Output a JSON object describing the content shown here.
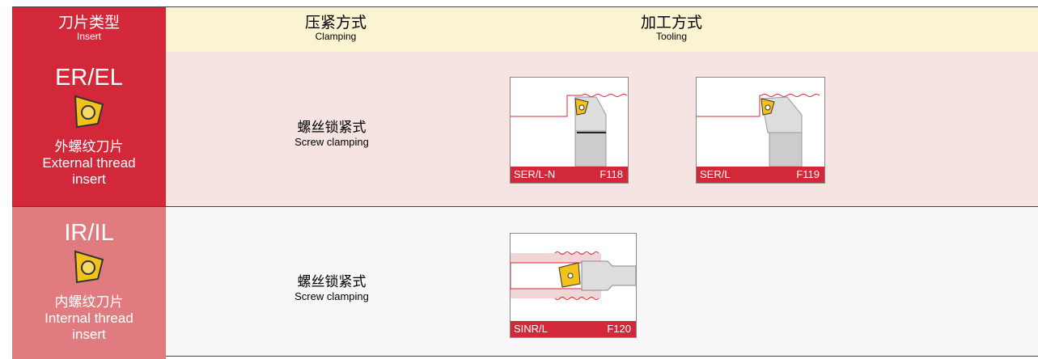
{
  "header": {
    "insert_zh": "刀片类型",
    "insert_en": "Insert",
    "clamping_zh": "压紧方式",
    "clamping_en": "Clamping",
    "tooling_zh": "加工方式",
    "tooling_en": "Tooling"
  },
  "rows": [
    {
      "code": "ER/EL",
      "type_zh": "外螺纹刀片",
      "type_en": "External thread insert",
      "clamping_zh": "螺丝锁紧式",
      "clamping_en": "Screw clamping",
      "tools": [
        {
          "model": "SER/L-N",
          "page": "F118"
        },
        {
          "model": "SER/L",
          "page": "F119"
        }
      ]
    },
    {
      "code": "IR/IL",
      "type_zh": "内螺纹刀片",
      "type_en": "Internal thread insert",
      "clamping_zh": "螺丝锁紧式",
      "clamping_en": "Screw clamping",
      "tools": [
        {
          "model": "SINR/L",
          "page": "F120"
        }
      ]
    }
  ]
}
